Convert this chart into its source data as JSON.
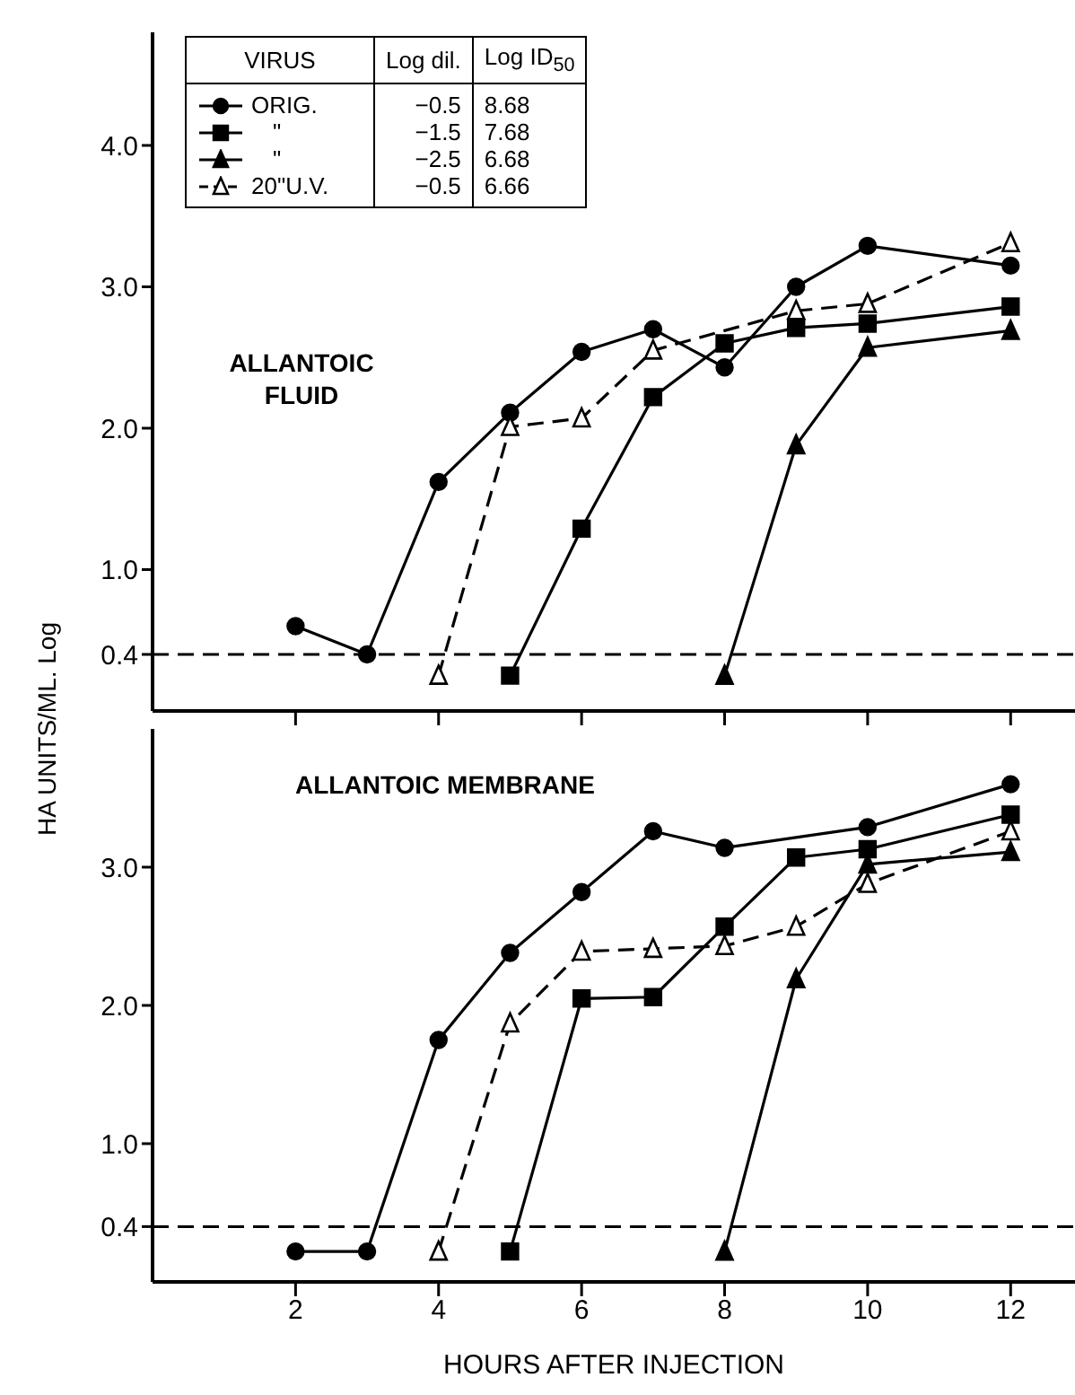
{
  "chart_data": [
    {
      "type": "line",
      "ylabel": "HA UNITS/ML. Log",
      "legend": "top left",
      "legend_title": "VIRUS",
      "tick_labels": "y",
      "grid": false,
      "xlim": [
        0,
        12.9
      ],
      "xticks": [
        {
          "value": 2,
          "label": null
        },
        {
          "value": 4,
          "label": null
        },
        {
          "value": 6,
          "label": null
        },
        {
          "value": 8,
          "label": null
        },
        {
          "value": 10,
          "label": null
        },
        {
          "value": 12,
          "label": null
        }
      ],
      "ylim": [
        0,
        4.8
      ],
      "yticks": [
        0.4,
        {
          "value": 1,
          "label": "1.0"
        },
        {
          "value": 2,
          "label": "2.0"
        },
        {
          "value": 3,
          "label": "3.0"
        },
        {
          "value": 4,
          "label": "4.0"
        }
      ],
      "ref_lines": [
        {
          "axis": "y",
          "value": 0.4,
          "line_style": "dashed",
          "color": "#000000"
        }
      ],
      "annotations": [
        "Log dil.",
        "Log ID$_{50}$",
        "−0.5",
        "8.68",
        "−1.5",
        "7.68",
        "−2.5",
        "6.68",
        "−0.5",
        "6.66",
        "ALLANTOIC FLUID"
      ],
      "series": [
        {
          "name": "ORIG.",
          "color": "#000000",
          "marker": "circle",
          "line_style": "solid",
          "x": [
            2,
            3,
            4,
            5,
            6,
            7,
            8,
            9,
            10,
            12
          ],
          "values": [
            0.6,
            0.4,
            1.62,
            2.11,
            2.54,
            2.7,
            2.43,
            3.0,
            3.29,
            3.15
          ]
        },
        {
          "name": "\"",
          "color": "#000000",
          "marker": "square",
          "line_style": "solid",
          "x": [
            5,
            6,
            7,
            8,
            9,
            10,
            12
          ],
          "values": [
            0.25,
            1.29,
            2.22,
            2.6,
            2.71,
            2.74,
            2.86
          ]
        },
        {
          "name": "\"",
          "color": "#000000",
          "marker": "triangle",
          "line_style": "solid",
          "x": [
            8,
            9,
            10,
            12
          ],
          "values": [
            0.25,
            1.88,
            2.57,
            2.69
          ]
        },
        {
          "name": "20\"U.V.",
          "color": "#ffffff",
          "marker": "triangle",
          "line_style": "dashed",
          "x": [
            4,
            5,
            6,
            7,
            9,
            10,
            12
          ],
          "values": [
            0.25,
            2.01,
            2.07,
            2.55,
            2.83,
            2.88,
            3.31
          ]
        }
      ]
    },
    {
      "type": "line",
      "xlabel": "HOURS AFTER INJECTION",
      "grid": false,
      "xlim": [
        0,
        12.9
      ],
      "xticks": [
        2,
        4,
        6,
        8,
        10,
        12
      ],
      "ylim": [
        0,
        4.0
      ],
      "yticks": [
        0.4,
        {
          "value": 1,
          "label": "1.0"
        },
        {
          "value": 2,
          "label": "2.0"
        },
        {
          "value": 3,
          "label": "3.0"
        }
      ],
      "ref_lines": [
        {
          "axis": "y",
          "value": 0.4,
          "line_style": "dashed",
          "color": "#000000"
        }
      ],
      "annotations": [
        "ALLANTOIC MEMBRANE"
      ],
      "series": [
        {
          "color": "#000000",
          "marker": "circle",
          "line_style": "solid",
          "x": [
            2,
            3,
            4,
            5,
            6,
            7,
            8,
            10,
            12
          ],
          "values": [
            0.22,
            0.22,
            1.75,
            2.38,
            2.82,
            3.26,
            3.14,
            3.29,
            3.6
          ]
        },
        {
          "color": "#000000",
          "marker": "square",
          "line_style": "solid",
          "x": [
            5,
            6,
            7,
            8,
            9,
            10,
            12
          ],
          "values": [
            0.22,
            2.05,
            2.06,
            2.57,
            3.07,
            3.13,
            3.38
          ]
        },
        {
          "color": "#000000",
          "marker": "triangle",
          "line_style": "solid",
          "x": [
            8,
            9,
            10,
            12
          ],
          "values": [
            0.22,
            2.19,
            3.02,
            3.11
          ]
        },
        {
          "color": "#ffffff",
          "marker": "triangle",
          "line_style": "dashed",
          "x": [
            4,
            5,
            6,
            7,
            8,
            9,
            10,
            12
          ],
          "values": [
            0.22,
            1.87,
            2.39,
            2.41,
            2.43,
            2.57,
            2.88,
            3.26
          ]
        }
      ]
    }
  ]
}
